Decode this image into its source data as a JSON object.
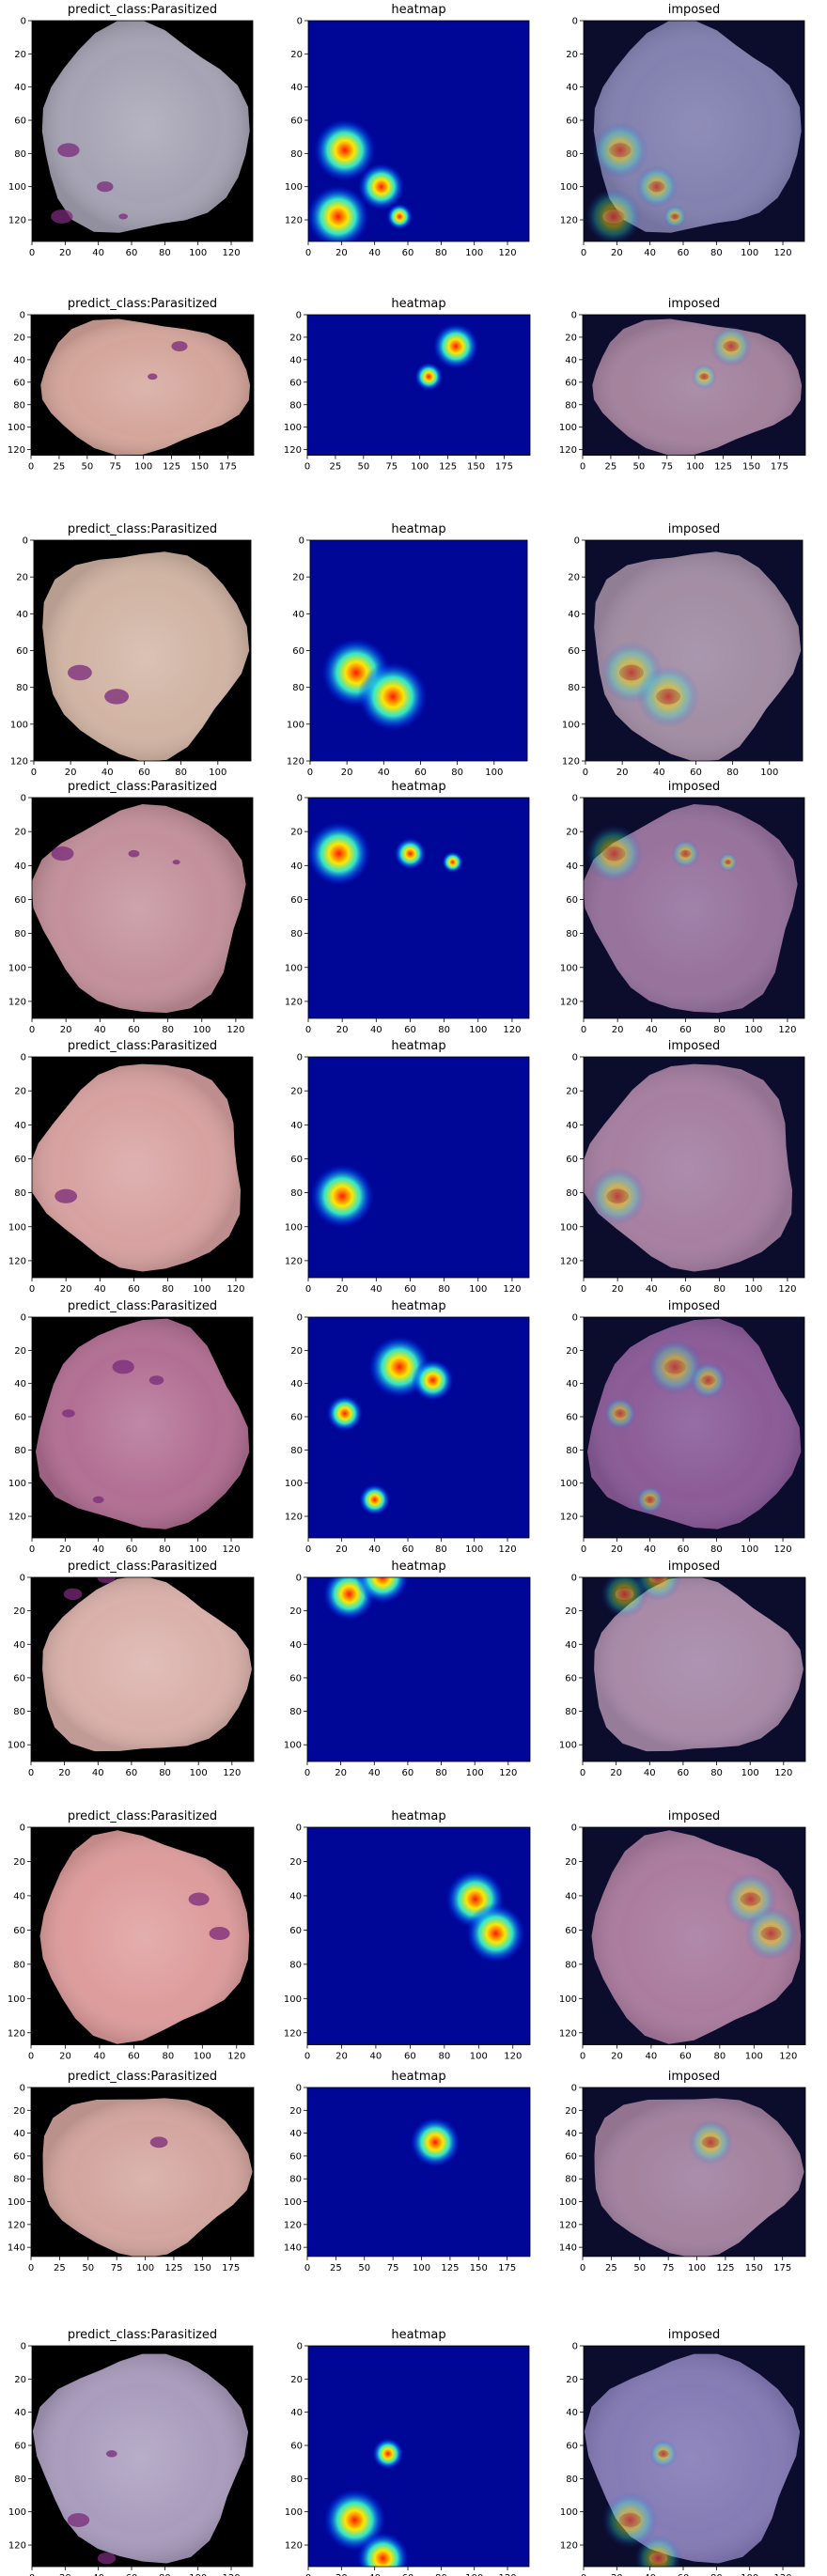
{
  "figure": {
    "columns": [
      "predict_class:Parasitized",
      "heatmap",
      "imposed"
    ],
    "colors": {
      "background": "#000000",
      "heat_low": "#00007f",
      "heat_high": "#ff0000",
      "frame": "#000000"
    }
  },
  "chart_data": [
    {
      "type": "image",
      "panel": "cell-1",
      "xlim": [
        0,
        133
      ],
      "ylim": [
        133,
        0
      ],
      "xticks": [
        "0",
        "20",
        "40",
        "60",
        "80",
        "100",
        "120"
      ],
      "yticks": [
        "0",
        "20",
        "40",
        "60",
        "80",
        "100",
        "120"
      ],
      "cell_tint": "#a6a3b4",
      "spots": [
        [
          22,
          78,
          12
        ],
        [
          18,
          118,
          12
        ],
        [
          44,
          100,
          9
        ],
        [
          55,
          118,
          5
        ]
      ]
    },
    {
      "type": "image",
      "panel": "cell-2",
      "xlim": [
        0,
        198
      ],
      "ylim": [
        125,
        0
      ],
      "xticks": [
        "0",
        "25",
        "50",
        "75",
        "100",
        "125",
        "150",
        "175"
      ],
      "yticks": [
        "0",
        "20",
        "40",
        "60",
        "80",
        "100",
        "120"
      ],
      "cell_tint": "#d4a59b",
      "spots": [
        [
          132,
          28,
          13
        ],
        [
          108,
          55,
          8
        ]
      ]
    },
    {
      "type": "image",
      "panel": "cell-3",
      "xlim": [
        0,
        118
      ],
      "ylim": [
        120,
        0
      ],
      "xticks": [
        "0",
        "20",
        "40",
        "60",
        "80",
        "100"
      ],
      "yticks": [
        "0",
        "20",
        "40",
        "60",
        "80",
        "100",
        "120"
      ],
      "cell_tint": "#d1b4a4",
      "spots": [
        [
          25,
          72,
          12
        ],
        [
          45,
          85,
          12
        ]
      ]
    },
    {
      "type": "image",
      "panel": "cell-4",
      "xlim": [
        0,
        130
      ],
      "ylim": [
        130,
        0
      ],
      "xticks": [
        "0",
        "20",
        "40",
        "60",
        "80",
        "100",
        "120"
      ],
      "yticks": [
        "0",
        "20",
        "40",
        "60",
        "80",
        "100",
        "120"
      ],
      "cell_tint": "#c3909b",
      "spots": [
        [
          18,
          33,
          12
        ],
        [
          60,
          33,
          6
        ],
        [
          85,
          38,
          4
        ]
      ]
    },
    {
      "type": "image",
      "panel": "cell-5",
      "xlim": [
        0,
        130
      ],
      "ylim": [
        130,
        0
      ],
      "xticks": [
        "0",
        "20",
        "40",
        "60",
        "80",
        "100",
        "120"
      ],
      "yticks": [
        "0",
        "20",
        "40",
        "60",
        "80",
        "100",
        "120"
      ],
      "cell_tint": "#d7a1a0",
      "spots": [
        [
          20,
          82,
          12
        ]
      ]
    },
    {
      "type": "image",
      "panel": "cell-6",
      "xlim": [
        0,
        133
      ],
      "ylim": [
        133,
        0
      ],
      "xticks": [
        "0",
        "20",
        "40",
        "60",
        "80",
        "100",
        "120"
      ],
      "yticks": [
        "0",
        "20",
        "40",
        "60",
        "80",
        "100",
        "120"
      ],
      "cell_tint": "#b26f93",
      "spots": [
        [
          55,
          30,
          12
        ],
        [
          75,
          38,
          8
        ],
        [
          22,
          58,
          7
        ],
        [
          40,
          110,
          6
        ]
      ]
    },
    {
      "type": "image",
      "panel": "cell-7",
      "xlim": [
        0,
        133
      ],
      "ylim": [
        110,
        0
      ],
      "xticks": [
        "0",
        "20",
        "40",
        "60",
        "80",
        "100",
        "120"
      ],
      "yticks": [
        "0",
        "20",
        "40",
        "60",
        "80",
        "100"
      ],
      "cell_tint": "#dab0aa",
      "spots": [
        [
          25,
          10,
          10
        ],
        [
          45,
          0,
          10
        ]
      ]
    },
    {
      "type": "image",
      "panel": "cell-8",
      "xlim": [
        0,
        130
      ],
      "ylim": [
        127,
        0
      ],
      "xticks": [
        "0",
        "20",
        "40",
        "60",
        "80",
        "100",
        "120"
      ],
      "yticks": [
        "0",
        "20",
        "40",
        "60",
        "80",
        "100",
        "120"
      ],
      "cell_tint": "#de9c9c",
      "spots": [
        [
          98,
          42,
          11
        ],
        [
          110,
          62,
          11
        ]
      ]
    },
    {
      "type": "image",
      "panel": "cell-9",
      "xlim": [
        0,
        195
      ],
      "ylim": [
        148,
        0
      ],
      "xticks": [
        "0",
        "25",
        "50",
        "75",
        "100",
        "125",
        "150",
        "175"
      ],
      "yticks": [
        "0",
        "20",
        "40",
        "60",
        "80",
        "100",
        "120",
        "140"
      ],
      "cell_tint": "#d3a59e",
      "spots": [
        [
          112,
          48,
          14
        ]
      ]
    },
    {
      "type": "image",
      "panel": "cell-10",
      "xlim": [
        0,
        133
      ],
      "ylim": [
        133,
        0
      ],
      "xticks": [
        "0",
        "20",
        "40",
        "60",
        "80",
        "100",
        "120"
      ],
      "yticks": [
        "0",
        "20",
        "40",
        "60",
        "80",
        "100",
        "120"
      ],
      "cell_tint": "#a99cbd",
      "spots": [
        [
          28,
          105,
          12
        ],
        [
          45,
          128,
          10
        ],
        [
          48,
          65,
          6
        ]
      ]
    }
  ]
}
